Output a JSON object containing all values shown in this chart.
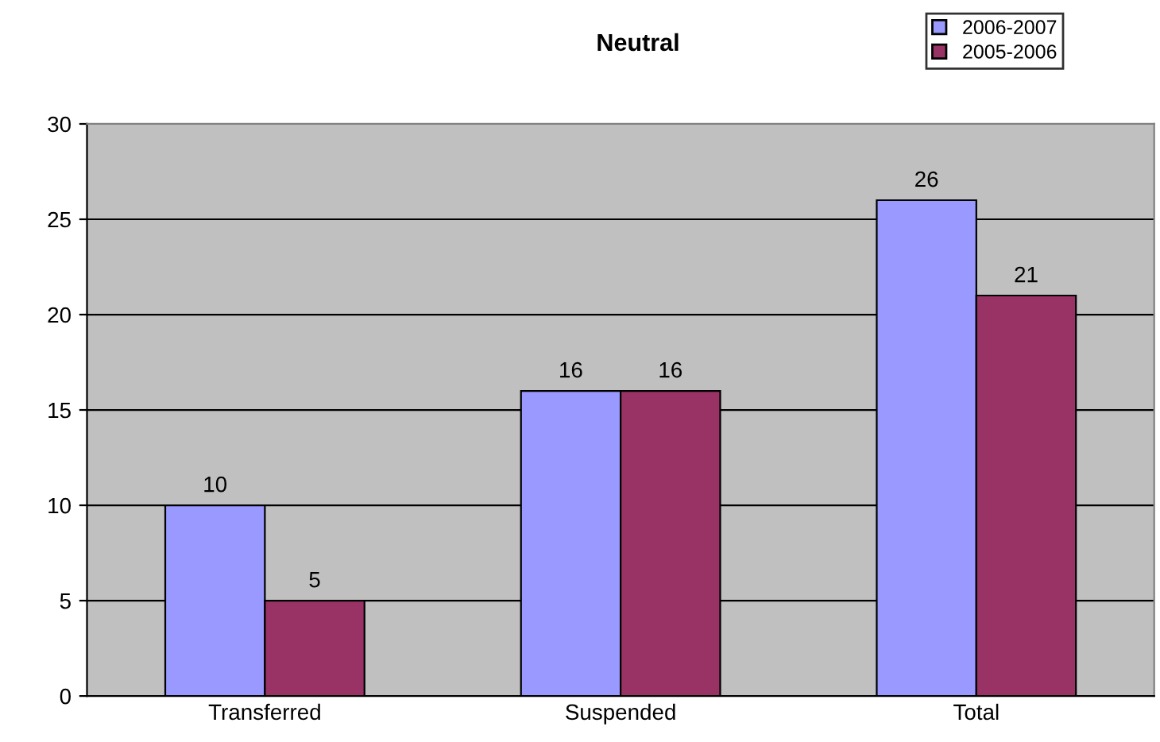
{
  "chart_data": {
    "type": "bar",
    "title": "Neutral",
    "categories": [
      "Transferred",
      "Suspended",
      "Total"
    ],
    "series": [
      {
        "name": "2006-2007",
        "color": "#9999ff",
        "values": [
          10,
          16,
          26
        ]
      },
      {
        "name": "2005-2006",
        "color": "#993366",
        "values": [
          5,
          16,
          21
        ]
      }
    ],
    "ylim": [
      0,
      30
    ],
    "yticks": [
      0,
      5,
      10,
      15,
      20,
      25,
      30
    ],
    "grid": "y",
    "legend": "top right",
    "data_labels": true
  }
}
